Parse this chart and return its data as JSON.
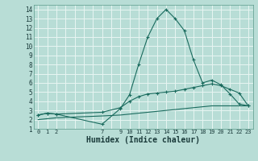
{
  "line1_x": [
    0,
    1,
    2,
    7,
    9,
    10,
    11,
    12,
    13,
    14,
    15,
    16,
    17,
    18,
    19,
    20,
    21,
    22,
    23
  ],
  "line1_y": [
    2.5,
    2.7,
    2.6,
    1.5,
    3.2,
    4.7,
    8.0,
    11.0,
    13.0,
    14.0,
    13.0,
    11.7,
    8.5,
    6.0,
    6.3,
    5.8,
    4.8,
    3.7,
    3.5
  ],
  "line2_x": [
    0,
    1,
    2,
    7,
    9,
    10,
    11,
    12,
    13,
    14,
    15,
    16,
    17,
    18,
    19,
    20,
    21,
    22,
    23
  ],
  "line2_y": [
    2.5,
    2.7,
    2.6,
    2.8,
    3.3,
    4.0,
    4.5,
    4.8,
    4.9,
    5.0,
    5.1,
    5.3,
    5.5,
    5.7,
    5.9,
    5.7,
    5.3,
    4.9,
    3.5
  ],
  "line3_x": [
    0,
    1,
    2,
    7,
    9,
    10,
    11,
    12,
    13,
    14,
    15,
    16,
    17,
    18,
    19,
    20,
    21,
    22,
    23
  ],
  "line3_y": [
    2.0,
    2.1,
    2.2,
    2.4,
    2.5,
    2.6,
    2.7,
    2.8,
    2.9,
    3.0,
    3.1,
    3.2,
    3.3,
    3.4,
    3.5,
    3.5,
    3.5,
    3.5,
    3.5
  ],
  "line_color": "#1a6b5e",
  "bg_color": "#b8ddd6",
  "grid_color": "#e8f5f2",
  "xlabel": "Humidex (Indice chaleur)",
  "xlabel_fontsize": 7,
  "yticks": [
    1,
    2,
    3,
    4,
    5,
    6,
    7,
    8,
    9,
    10,
    11,
    12,
    13,
    14
  ],
  "xlim": [
    -0.5,
    23.5
  ],
  "ylim": [
    1,
    14.5
  ],
  "tick_color": "#1a3a3a"
}
